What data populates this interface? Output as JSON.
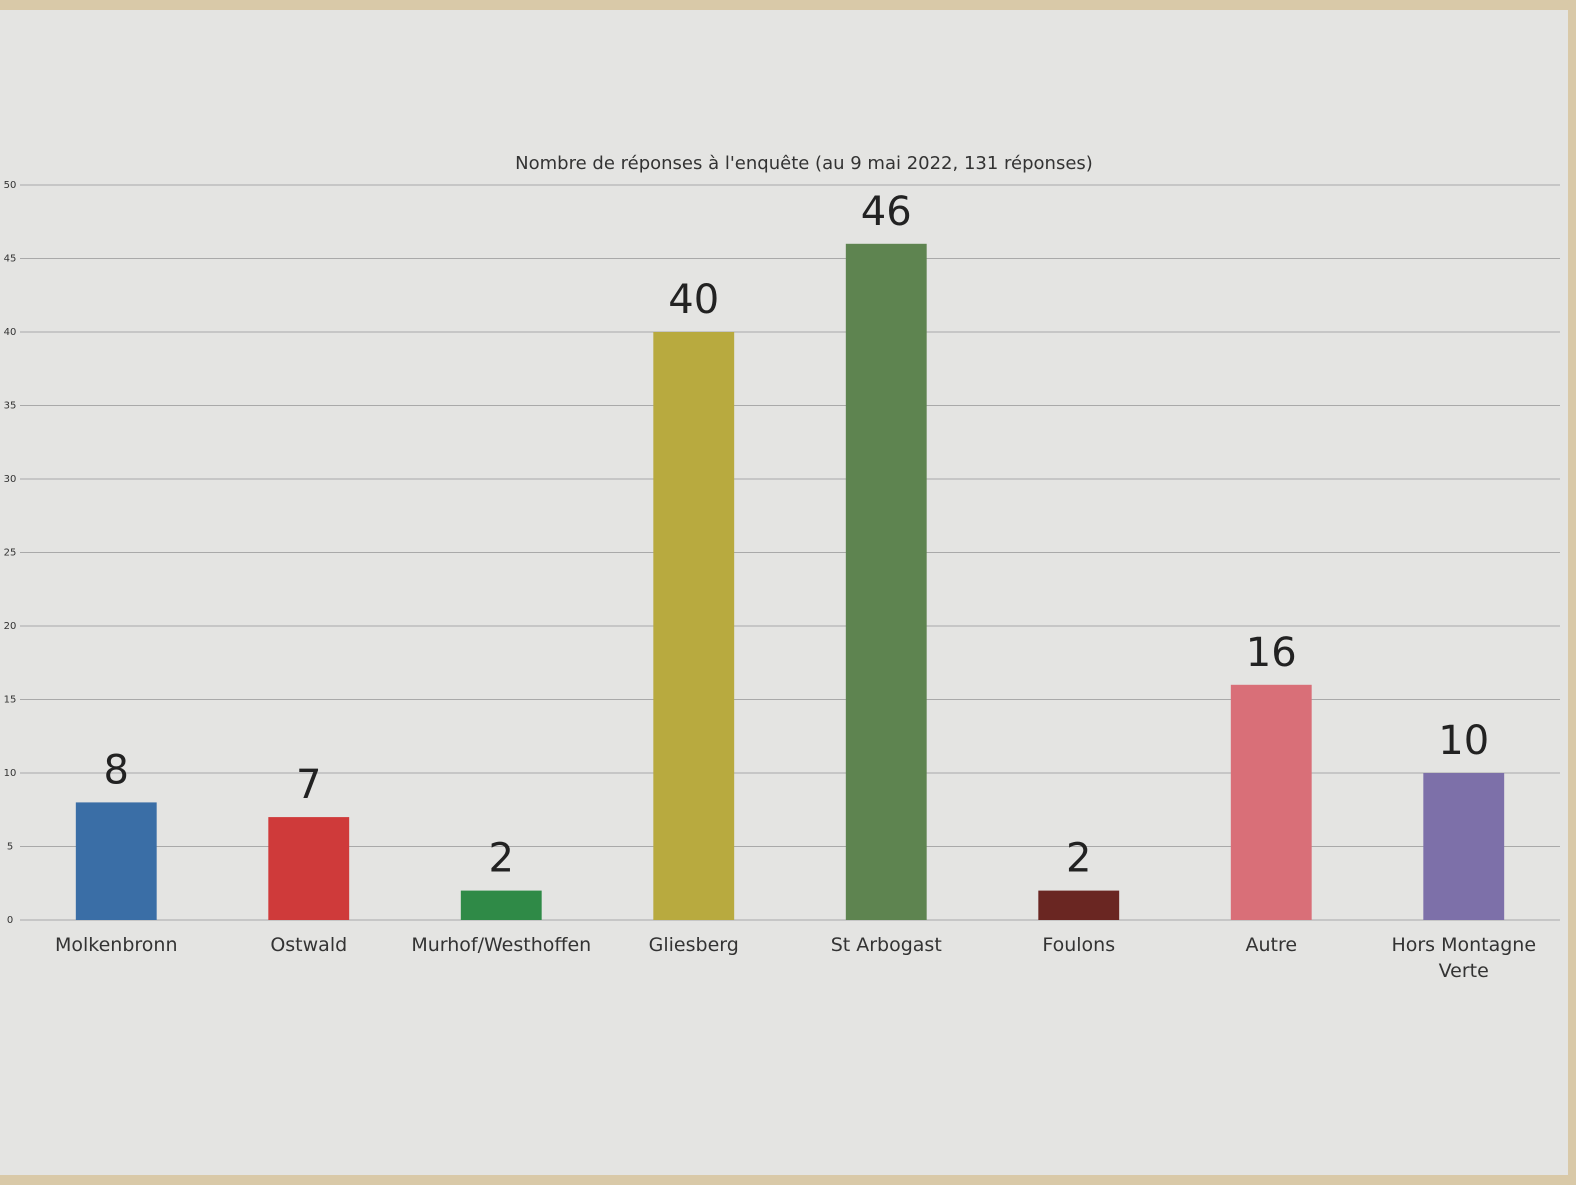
{
  "chart_data": {
    "type": "bar",
    "title": "Nombre de réponses à l'enquête (au 9 mai 2022, 131 réponses)",
    "categories": [
      "Molkenbronn",
      "Ostwald",
      "Murhof/Westhoffen",
      "Gliesberg",
      "St Arbogast",
      "Foulons",
      "Autre",
      "Hors Montagne Verte"
    ],
    "values": [
      8,
      7,
      2,
      40,
      46,
      2,
      16,
      10
    ],
    "colors": [
      "#3a6ea6",
      "#cf3a3a",
      "#2f8a47",
      "#b8aa3f",
      "#5e8450",
      "#6a2622",
      "#d96f78",
      "#7d70a9"
    ],
    "ylim": [
      0,
      50
    ],
    "yticks": [
      0,
      5,
      10,
      15,
      20,
      25,
      30,
      35,
      40,
      45,
      50
    ],
    "grid": true
  }
}
